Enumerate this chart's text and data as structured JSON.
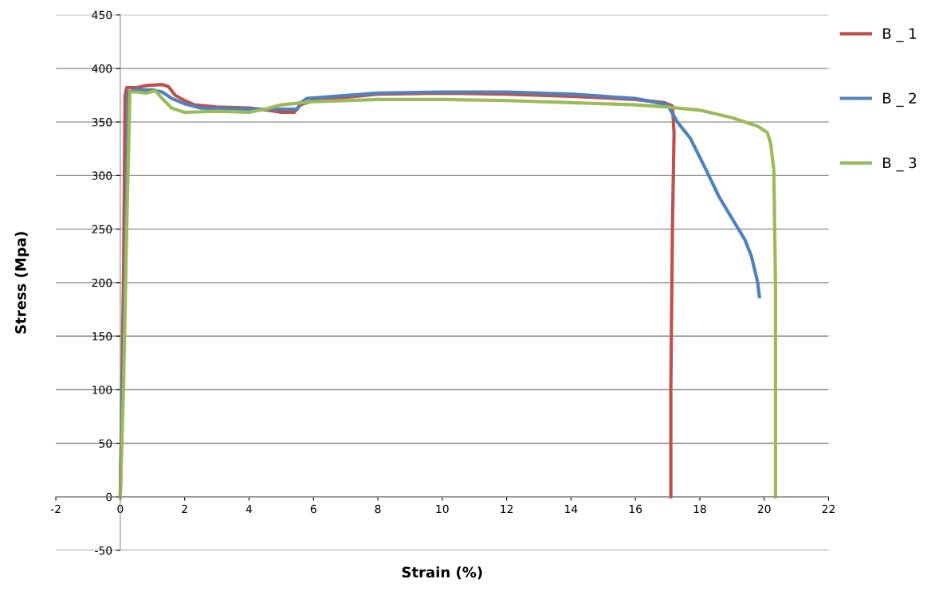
{
  "chart_data": {
    "type": "line",
    "xlabel": "Strain (%)",
    "ylabel": "Stress (Mpa)",
    "xlim": [
      -2,
      22
    ],
    "ylim": [
      -50,
      450
    ],
    "xticks": [
      -2,
      0,
      2,
      4,
      6,
      8,
      10,
      12,
      14,
      16,
      18,
      20,
      22
    ],
    "yticks": [
      -50,
      0,
      50,
      100,
      150,
      200,
      250,
      300,
      350,
      400,
      450
    ],
    "grid": "y",
    "legend": "right",
    "marker": "none",
    "line_style": "solid",
    "series": [
      {
        "name": "B _ 1",
        "color": "#c0504d",
        "x": [
          0,
          0.1,
          0.15,
          0.2,
          0.5,
          0.8,
          1.3,
          1.5,
          1.7,
          2.0,
          2.3,
          3,
          4,
          4.6,
          5.0,
          5.4,
          5.6,
          6,
          8,
          10,
          12,
          14,
          16,
          16.9,
          17.15,
          17.2,
          17.15,
          17.1,
          17.1
        ],
        "values": [
          0,
          200,
          375,
          382,
          382,
          384,
          385,
          383,
          375,
          370,
          366,
          364,
          363,
          361,
          359,
          359,
          366,
          370,
          376,
          377,
          376,
          374,
          371,
          368,
          365,
          340,
          250,
          100,
          0
        ]
      },
      {
        "name": "B _ 2",
        "color": "#4f81bd",
        "x": [
          0,
          0.15,
          0.25,
          0.5,
          1.0,
          1.3,
          1.6,
          2.0,
          2.5,
          4,
          5.3,
          5.5,
          5.6,
          5.8,
          8,
          10,
          12,
          14,
          16,
          17,
          17.3,
          17.7,
          18.2,
          18.6,
          19.0,
          19.4,
          19.6,
          19.8,
          19.85
        ],
        "values": [
          0,
          200,
          378,
          380,
          380,
          378,
          372,
          367,
          363,
          362,
          362,
          362,
          368,
          372,
          377,
          378,
          378,
          376,
          372,
          366,
          350,
          335,
          305,
          280,
          260,
          240,
          225,
          200,
          187
        ]
      },
      {
        "name": "B _ 3",
        "color": "#9bbb59",
        "x": [
          0,
          0.1,
          0.2,
          0.3,
          0.5,
          0.8,
          1.1,
          1.3,
          1.6,
          2.0,
          3,
          4,
          4.5,
          5,
          6,
          8,
          10,
          12,
          14,
          16,
          17,
          18,
          19,
          19.8,
          20.1,
          20.2,
          20.3,
          20.35,
          20.35
        ],
        "values": [
          0,
          100,
          250,
          378,
          378,
          377,
          379,
          372,
          363,
          359,
          360,
          359,
          362,
          366,
          369,
          371,
          371,
          370,
          368,
          366,
          364,
          361,
          354,
          346,
          340,
          330,
          305,
          200,
          0
        ]
      }
    ]
  }
}
